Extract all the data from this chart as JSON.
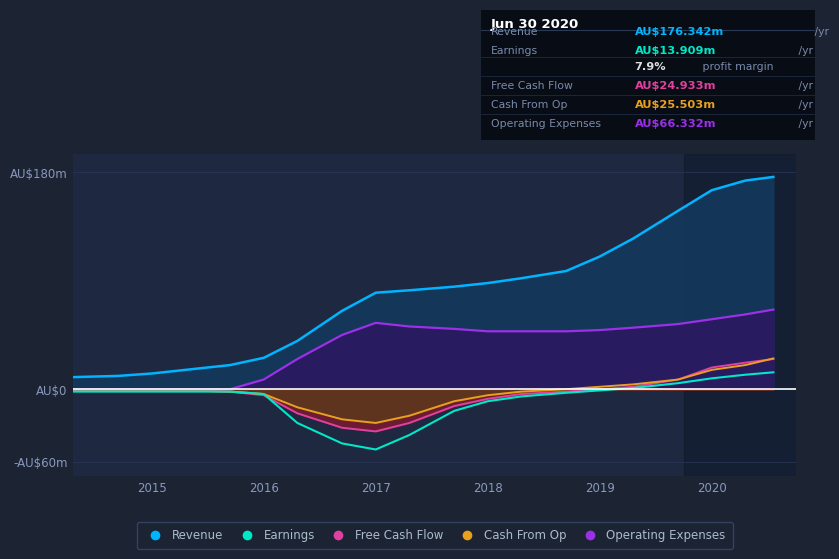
{
  "bg_color": "#1c2333",
  "plot_bg_color": "#1e2840",
  "grid_color": "#2a3555",
  "zero_line_color": "#ffffff",
  "years": [
    2014.3,
    2014.7,
    2015.0,
    2015.3,
    2015.7,
    2016.0,
    2016.3,
    2016.7,
    2017.0,
    2017.3,
    2017.7,
    2018.0,
    2018.3,
    2018.7,
    2019.0,
    2019.3,
    2019.7,
    2020.0,
    2020.3,
    2020.55
  ],
  "revenue": [
    10,
    11,
    13,
    16,
    20,
    26,
    40,
    65,
    80,
    82,
    85,
    88,
    92,
    98,
    110,
    125,
    148,
    165,
    173,
    176
  ],
  "earnings": [
    -2,
    -2,
    -2,
    -2,
    -2,
    -4,
    -28,
    -45,
    -50,
    -38,
    -18,
    -10,
    -6,
    -3,
    -1,
    1,
    5,
    9,
    12,
    14
  ],
  "free_cf": [
    -1,
    -1,
    -1,
    -1,
    -2,
    -5,
    -20,
    -32,
    -35,
    -28,
    -14,
    -8,
    -4,
    -2,
    0,
    2,
    8,
    18,
    22,
    25
  ],
  "cash_from_op": [
    -1,
    -1,
    -1,
    -1,
    -2,
    -4,
    -15,
    -25,
    -28,
    -22,
    -10,
    -5,
    -2,
    0,
    2,
    4,
    8,
    16,
    20,
    25.5
  ],
  "op_exp": [
    0,
    0,
    0,
    0,
    0,
    8,
    25,
    45,
    55,
    52,
    50,
    48,
    48,
    48,
    49,
    51,
    54,
    58,
    62,
    66
  ],
  "ylim": [
    -72,
    195
  ],
  "xlim": [
    2014.3,
    2020.75
  ],
  "yticks": [
    -60,
    0,
    180
  ],
  "ytick_labels": [
    "-AU$60m",
    "AU$0",
    "AU$180m"
  ],
  "xticks": [
    2015,
    2016,
    2017,
    2018,
    2019,
    2020
  ],
  "revenue_color": "#00b4ff",
  "earnings_color": "#00e8c8",
  "free_cf_color": "#e040a0",
  "cash_op_color": "#e8a020",
  "op_exp_color": "#9b30e8",
  "legend_labels": [
    "Revenue",
    "Earnings",
    "Free Cash Flow",
    "Cash From Op",
    "Operating Expenses"
  ],
  "legend_colors": [
    "#00b4ff",
    "#00e8c8",
    "#e040a0",
    "#e8a020",
    "#9b30e8"
  ],
  "shade_start": 2019.75,
  "shade_end": 2020.75,
  "infobox": {
    "title": "Jun 30 2020",
    "rows": [
      {
        "label": "Revenue",
        "value": "AU$176.342m",
        "unit": " /yr",
        "color": "#00b4ff",
        "has_sep": true
      },
      {
        "label": "Earnings",
        "value": "AU$13.909m",
        "unit": " /yr",
        "color": "#00e8c8",
        "has_sep": false
      },
      {
        "label": "",
        "value": "7.9%",
        "unit": " profit margin",
        "color": "#dddddd",
        "has_sep": true
      },
      {
        "label": "Free Cash Flow",
        "value": "AU$24.933m",
        "unit": " /yr",
        "color": "#e040a0",
        "has_sep": true
      },
      {
        "label": "Cash From Op",
        "value": "AU$25.503m",
        "unit": " /yr",
        "color": "#e8a020",
        "has_sep": true
      },
      {
        "label": "Operating Expenses",
        "value": "AU$66.332m",
        "unit": " /yr",
        "color": "#9b30e8",
        "has_sep": true
      }
    ]
  }
}
